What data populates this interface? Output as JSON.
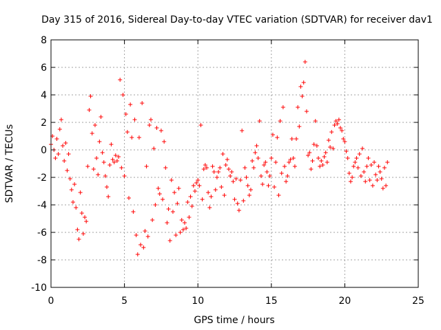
{
  "chart_data": {
    "type": "scatter",
    "title": "Day 315 of 2016, Sidereal Day-to-day VTEC variation (SDTVAR) for receiver dav1",
    "xlabel": "GPS time / hours",
    "ylabel": "SDTVAR / TECUs",
    "xlim": [
      0,
      25
    ],
    "ylim": [
      -10,
      8
    ],
    "xticks": [
      0,
      5,
      10,
      15,
      20,
      25
    ],
    "yticks": [
      -10,
      -8,
      -6,
      -4,
      -2,
      0,
      2,
      4,
      6,
      8
    ],
    "grid": true,
    "marker": "+",
    "color": "#ff0000",
    "series": [
      {
        "name": "dav1",
        "points": [
          [
            0.0,
            0.4
          ],
          [
            0.1,
            1.0
          ],
          [
            0.2,
            0.0
          ],
          [
            0.3,
            -0.6
          ],
          [
            0.4,
            0.8
          ],
          [
            0.5,
            -0.3
          ],
          [
            0.6,
            1.5
          ],
          [
            0.7,
            2.2
          ],
          [
            0.8,
            0.3
          ],
          [
            0.9,
            -0.8
          ],
          [
            1.0,
            0.5
          ],
          [
            1.1,
            -1.5
          ],
          [
            1.2,
            -0.3
          ],
          [
            1.3,
            -2.1
          ],
          [
            1.4,
            -2.9
          ],
          [
            1.5,
            -3.8
          ],
          [
            1.6,
            -2.5
          ],
          [
            1.7,
            -4.2
          ],
          [
            1.8,
            -5.8
          ],
          [
            1.9,
            -6.5
          ],
          [
            2.0,
            -3.1
          ],
          [
            2.1,
            -4.6
          ],
          [
            2.2,
            -6.1
          ],
          [
            2.3,
            -4.9
          ],
          [
            2.4,
            -5.2
          ],
          [
            2.5,
            -1.2
          ],
          [
            2.6,
            2.9
          ],
          [
            2.7,
            3.9
          ],
          [
            2.8,
            1.2
          ],
          [
            2.9,
            -1.4
          ],
          [
            3.0,
            1.8
          ],
          [
            3.1,
            -0.6
          ],
          [
            3.2,
            -1.8
          ],
          [
            3.3,
            0.6
          ],
          [
            3.4,
            2.4
          ],
          [
            3.5,
            -0.2
          ],
          [
            3.6,
            -0.9
          ],
          [
            3.7,
            -1.9
          ],
          [
            3.8,
            -2.7
          ],
          [
            3.9,
            -3.4
          ],
          [
            4.0,
            -1.1
          ],
          [
            4.1,
            0.4
          ],
          [
            4.2,
            -0.7
          ],
          [
            4.3,
            -0.9
          ],
          [
            4.4,
            -0.4
          ],
          [
            4.5,
            -0.8
          ],
          [
            4.6,
            -0.5
          ],
          [
            4.7,
            5.1
          ],
          [
            4.8,
            -1.3
          ],
          [
            4.9,
            4.0
          ],
          [
            5.0,
            -1.9
          ],
          [
            5.1,
            2.6
          ],
          [
            5.2,
            1.3
          ],
          [
            5.3,
            -3.5
          ],
          [
            5.4,
            3.3
          ],
          [
            5.5,
            0.9
          ],
          [
            5.6,
            -4.5
          ],
          [
            5.7,
            2.2
          ],
          [
            5.8,
            -6.2
          ],
          [
            5.9,
            -7.6
          ],
          [
            6.0,
            0.9
          ],
          [
            6.1,
            -6.9
          ],
          [
            6.2,
            3.4
          ],
          [
            6.3,
            -7.1
          ],
          [
            6.4,
            -5.9
          ],
          [
            6.5,
            -1.2
          ],
          [
            6.6,
            -6.3
          ],
          [
            6.7,
            1.8
          ],
          [
            6.8,
            2.2
          ],
          [
            6.9,
            -5.1
          ],
          [
            7.0,
            0.1
          ],
          [
            7.1,
            -4.0
          ],
          [
            7.2,
            1.6
          ],
          [
            7.3,
            -2.8
          ],
          [
            7.4,
            -3.2
          ],
          [
            7.5,
            1.4
          ],
          [
            7.6,
            -3.6
          ],
          [
            7.7,
            0.6
          ],
          [
            7.8,
            -1.3
          ],
          [
            7.9,
            -5.3
          ],
          [
            8.0,
            -4.3
          ],
          [
            8.1,
            -6.6
          ],
          [
            8.2,
            -2.2
          ],
          [
            8.3,
            -4.5
          ],
          [
            8.4,
            -3.1
          ],
          [
            8.5,
            -6.2
          ],
          [
            8.6,
            -3.9
          ],
          [
            8.7,
            -2.8
          ],
          [
            8.8,
            -6.0
          ],
          [
            8.9,
            -5.1
          ],
          [
            9.0,
            -5.8
          ],
          [
            9.1,
            -5.3
          ],
          [
            9.2,
            -5.7
          ],
          [
            9.3,
            -3.8
          ],
          [
            9.4,
            -4.9
          ],
          [
            9.5,
            -3.4
          ],
          [
            9.6,
            -4.1
          ],
          [
            9.7,
            -2.6
          ],
          [
            9.8,
            -3.0
          ],
          [
            9.9,
            -2.4
          ],
          [
            10.0,
            -2.2
          ],
          [
            10.1,
            -2.6
          ],
          [
            10.2,
            1.8
          ],
          [
            10.3,
            -3.6
          ],
          [
            10.4,
            -1.4
          ],
          [
            10.5,
            -1.1
          ],
          [
            10.6,
            -1.3
          ],
          [
            10.7,
            -3.1
          ],
          [
            10.8,
            -4.2
          ],
          [
            10.9,
            -3.4
          ],
          [
            11.0,
            -1.2
          ],
          [
            11.1,
            -1.6
          ],
          [
            11.2,
            -2.9
          ],
          [
            11.3,
            -2.0
          ],
          [
            11.4,
            -1.6
          ],
          [
            11.5,
            -1.3
          ],
          [
            11.6,
            -2.7
          ],
          [
            11.7,
            -0.3
          ],
          [
            11.8,
            -3.3
          ],
          [
            11.9,
            -1.1
          ],
          [
            12.0,
            -0.7
          ],
          [
            12.1,
            -1.4
          ],
          [
            12.2,
            -1.9
          ],
          [
            12.3,
            -1.6
          ],
          [
            12.4,
            -2.3
          ],
          [
            12.5,
            -3.6
          ],
          [
            12.6,
            -2.1
          ],
          [
            12.7,
            -3.9
          ],
          [
            12.8,
            -4.4
          ],
          [
            12.9,
            -2.2
          ],
          [
            13.0,
            1.4
          ],
          [
            13.1,
            -3.7
          ],
          [
            13.2,
            -1.3
          ],
          [
            13.3,
            -2.0
          ],
          [
            13.4,
            -2.6
          ],
          [
            13.5,
            -3.3
          ],
          [
            13.6,
            -2.9
          ],
          [
            13.7,
            -0.8
          ],
          [
            13.8,
            -1.3
          ],
          [
            13.9,
            -0.2
          ],
          [
            14.0,
            0.3
          ],
          [
            14.1,
            -0.6
          ],
          [
            14.2,
            2.1
          ],
          [
            14.3,
            -1.9
          ],
          [
            14.4,
            -2.5
          ],
          [
            14.5,
            -1.1
          ],
          [
            14.6,
            -0.9
          ],
          [
            14.7,
            -1.6
          ],
          [
            14.8,
            -2.6
          ],
          [
            14.9,
            -1.9
          ],
          [
            15.0,
            -0.6
          ],
          [
            15.1,
            1.1
          ],
          [
            15.2,
            -2.7
          ],
          [
            15.3,
            -0.9
          ],
          [
            15.4,
            0.9
          ],
          [
            15.5,
            -3.3
          ],
          [
            15.6,
            2.1
          ],
          [
            15.7,
            -1.7
          ],
          [
            15.8,
            3.1
          ],
          [
            15.9,
            -1.2
          ],
          [
            16.0,
            -2.3
          ],
          [
            16.1,
            -1.9
          ],
          [
            16.2,
            -0.9
          ],
          [
            16.3,
            -0.7
          ],
          [
            16.4,
            0.8
          ],
          [
            16.5,
            -0.6
          ],
          [
            16.6,
            -1.2
          ],
          [
            16.7,
            0.8
          ],
          [
            16.8,
            3.1
          ],
          [
            16.9,
            1.7
          ],
          [
            17.0,
            4.6
          ],
          [
            17.1,
            3.9
          ],
          [
            17.2,
            4.9
          ],
          [
            17.3,
            6.4
          ],
          [
            17.4,
            2.8
          ],
          [
            17.5,
            -0.4
          ],
          [
            17.6,
            -0.2
          ],
          [
            17.7,
            -1.4
          ],
          [
            17.8,
            -0.8
          ],
          [
            17.9,
            0.4
          ],
          [
            18.0,
            2.1
          ],
          [
            18.1,
            0.3
          ],
          [
            18.2,
            -0.6
          ],
          [
            18.3,
            -1.2
          ],
          [
            18.4,
            -0.8
          ],
          [
            18.5,
            -1.1
          ],
          [
            18.6,
            -0.5
          ],
          [
            18.7,
            -0.2
          ],
          [
            18.8,
            -0.9
          ],
          [
            18.9,
            0.7
          ],
          [
            19.0,
            0.2
          ],
          [
            19.1,
            1.3
          ],
          [
            19.2,
            0.1
          ],
          [
            19.3,
            1.8
          ],
          [
            19.4,
            2.1
          ],
          [
            19.5,
            1.9
          ],
          [
            19.6,
            2.2
          ],
          [
            19.7,
            1.6
          ],
          [
            19.8,
            1.4
          ],
          [
            19.9,
            0.8
          ],
          [
            20.0,
            0.6
          ],
          [
            20.1,
            -0.1
          ],
          [
            20.2,
            -0.6
          ],
          [
            20.3,
            -1.7
          ],
          [
            20.4,
            -2.3
          ],
          [
            20.5,
            -2.0
          ],
          [
            20.6,
            -1.2
          ],
          [
            20.7,
            -0.9
          ],
          [
            20.8,
            -0.6
          ],
          [
            20.9,
            -1.3
          ],
          [
            21.0,
            -0.3
          ],
          [
            21.1,
            -1.9
          ],
          [
            21.2,
            0.1
          ],
          [
            21.3,
            -1.6
          ],
          [
            21.4,
            -2.3
          ],
          [
            21.5,
            -1.2
          ],
          [
            21.6,
            -0.6
          ],
          [
            21.7,
            -2.2
          ],
          [
            21.8,
            -1.1
          ],
          [
            21.9,
            -2.6
          ],
          [
            22.0,
            -0.9
          ],
          [
            22.1,
            -1.8
          ],
          [
            22.2,
            -2.2
          ],
          [
            22.3,
            -1.2
          ],
          [
            22.4,
            -1.6
          ],
          [
            22.5,
            -2.1
          ],
          [
            22.6,
            -2.8
          ],
          [
            22.7,
            -1.3
          ],
          [
            22.8,
            -2.6
          ],
          [
            22.9,
            -0.9
          ]
        ]
      }
    ]
  }
}
